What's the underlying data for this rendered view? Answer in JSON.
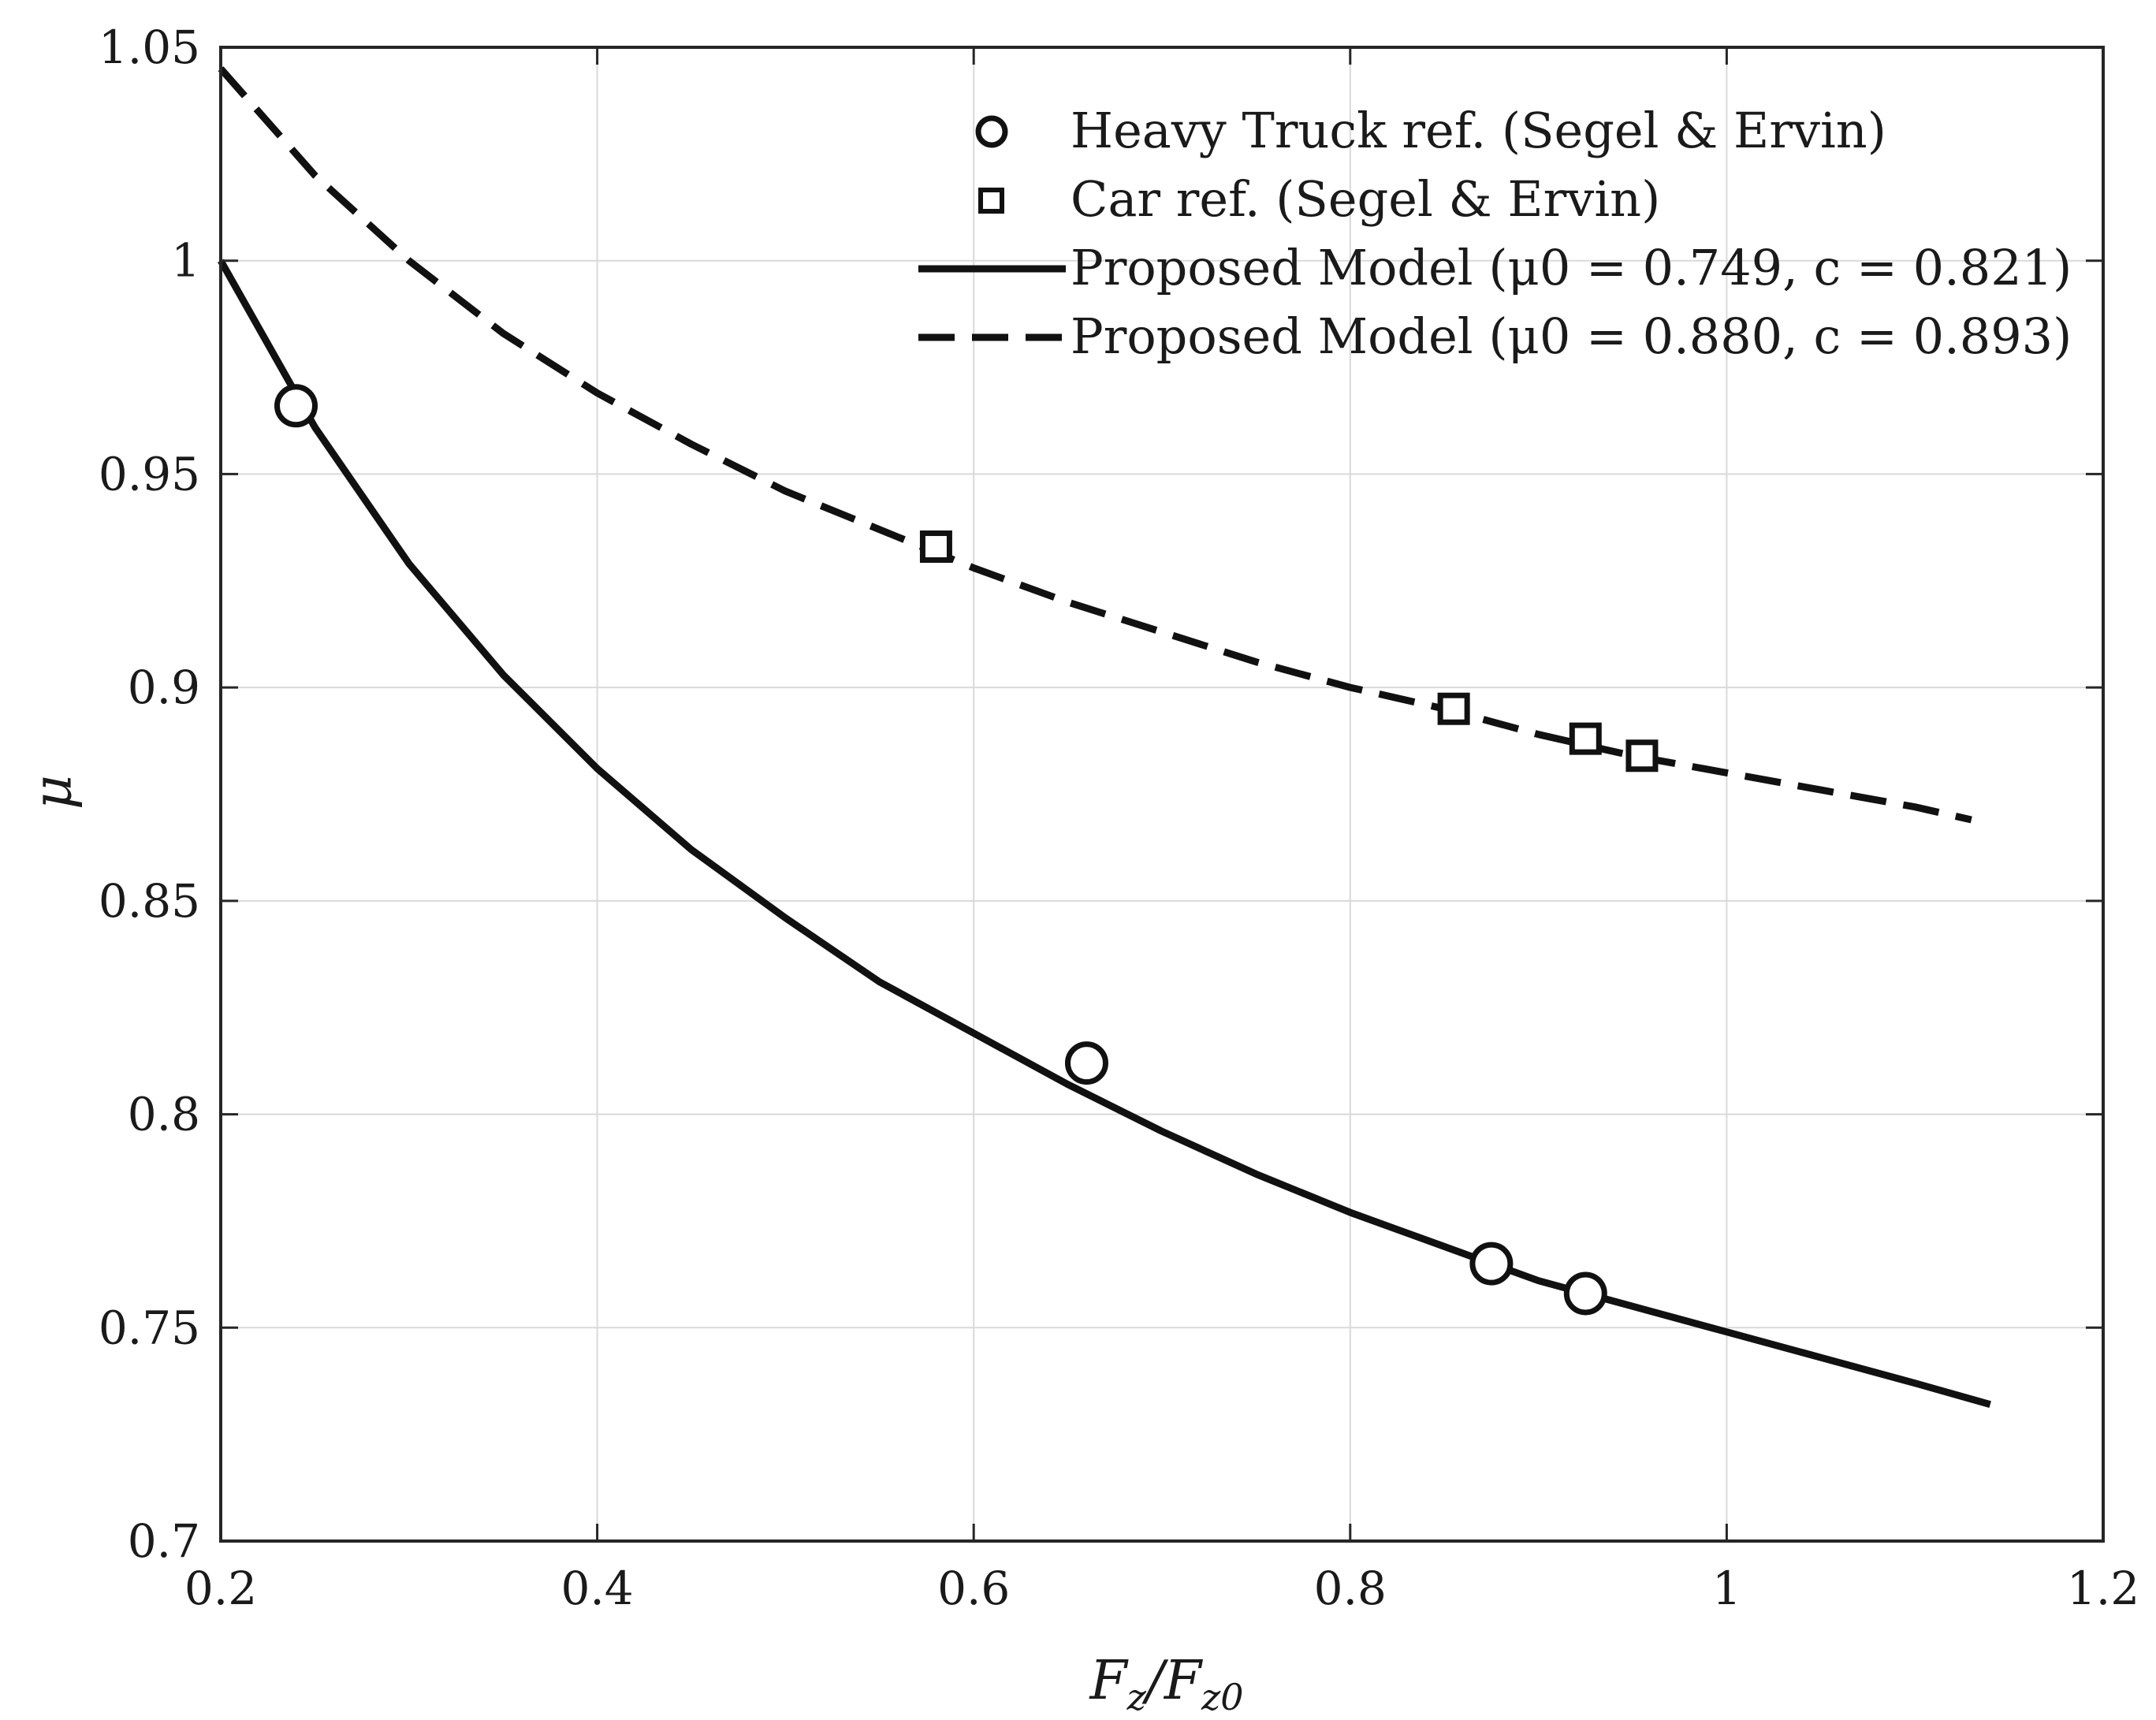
{
  "chart_data": {
    "type": "line",
    "title": "",
    "xlabel": "F_z / F_z0",
    "ylabel": "μ",
    "xlim": [
      0.2,
      1.2
    ],
    "ylim": [
      0.7,
      1.05
    ],
    "xticks": [
      0.2,
      0.4,
      0.6,
      0.8,
      1,
      1.2
    ],
    "xtick_labels": [
      "0.2",
      "0.4",
      "0.6",
      "0.8",
      "1",
      "1.2"
    ],
    "yticks": [
      0.7,
      0.75,
      0.8,
      0.85,
      0.9,
      0.95,
      1,
      1.05
    ],
    "ytick_labels": [
      "0.7",
      "0.75",
      "0.8",
      "0.85",
      "0.9",
      "0.95",
      "1",
      "1.05"
    ],
    "grid": true,
    "legend_position": "top-right",
    "series": [
      {
        "name": "Heavy Truck ref. (Segel & Ervin)",
        "kind": "scatter",
        "marker": "circle",
        "x": [
          0.24,
          0.66,
          0.875,
          0.925
        ],
        "y": [
          0.966,
          0.812,
          0.765,
          0.758
        ]
      },
      {
        "name": "Car ref. (Segel & Ervin)",
        "kind": "scatter",
        "marker": "square",
        "x": [
          0.58,
          0.855,
          0.925,
          0.955
        ],
        "y": [
          0.933,
          0.895,
          0.888,
          0.884
        ]
      },
      {
        "name": "Proposed Model (μ0 = 0.749, c = 0.821)",
        "kind": "line",
        "style": "solid",
        "x": [
          0.2,
          0.25,
          0.3,
          0.35,
          0.4,
          0.45,
          0.5,
          0.55,
          0.6,
          0.65,
          0.7,
          0.75,
          0.8,
          0.85,
          0.9,
          0.95,
          1.0,
          1.05,
          1.1,
          1.14
        ],
        "y": [
          1.0,
          0.961,
          0.929,
          0.903,
          0.881,
          0.862,
          0.846,
          0.831,
          0.819,
          0.807,
          0.796,
          0.786,
          0.777,
          0.769,
          0.761,
          0.755,
          0.749,
          0.743,
          0.737,
          0.732
        ]
      },
      {
        "name": "Proposed Model (μ0 = 0.880, c = 0.893)",
        "kind": "line",
        "style": "dashed",
        "x": [
          0.2,
          0.25,
          0.3,
          0.35,
          0.4,
          0.45,
          0.5,
          0.55,
          0.6,
          0.65,
          0.7,
          0.75,
          0.8,
          0.85,
          0.9,
          0.95,
          1.0,
          1.05,
          1.1,
          1.13
        ],
        "y": [
          1.045,
          1.02,
          1.0,
          0.983,
          0.969,
          0.957,
          0.946,
          0.937,
          0.928,
          0.92,
          0.913,
          0.906,
          0.9,
          0.895,
          0.889,
          0.884,
          0.88,
          0.876,
          0.872,
          0.869
        ]
      }
    ],
    "legend": [
      "Heavy Truck ref. (Segel & Ervin)",
      "Car ref. (Segel & Ervin)",
      "Proposed Model (μ0 = 0.749, c = 0.821)",
      "Proposed Model (μ0 = 0.880, c = 0.893)"
    ]
  }
}
